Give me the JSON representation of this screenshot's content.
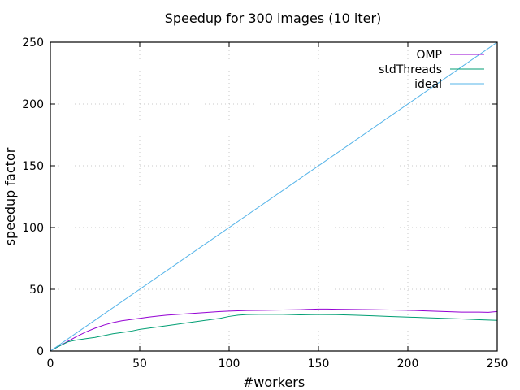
{
  "chart_data": {
    "type": "line",
    "title": "Speedup for 300 images (10 iter)",
    "xlabel": "#workers",
    "ylabel": "speedup factor",
    "xlim": [
      0,
      250
    ],
    "ylim": [
      0,
      250
    ],
    "xticks": [
      0,
      50,
      100,
      150,
      200,
      250
    ],
    "yticks": [
      0,
      50,
      100,
      150,
      200,
      250
    ],
    "grid": true,
    "legend_position": "top-right",
    "series": [
      {
        "name": "OMP",
        "color": "#9400d3",
        "points": [
          [
            1,
            1
          ],
          [
            5,
            4
          ],
          [
            10,
            8
          ],
          [
            15,
            12
          ],
          [
            20,
            15.5
          ],
          [
            25,
            18.5
          ],
          [
            30,
            21
          ],
          [
            35,
            23
          ],
          [
            40,
            24.5
          ],
          [
            45,
            25.5
          ],
          [
            50,
            26.5
          ],
          [
            55,
            27.5
          ],
          [
            60,
            28.3
          ],
          [
            65,
            29
          ],
          [
            70,
            29.5
          ],
          [
            75,
            30
          ],
          [
            80,
            30.5
          ],
          [
            85,
            31
          ],
          [
            90,
            31.5
          ],
          [
            95,
            32
          ],
          [
            100,
            32.3
          ],
          [
            110,
            32.8
          ],
          [
            120,
            33
          ],
          [
            130,
            33.2
          ],
          [
            140,
            33.5
          ],
          [
            150,
            34
          ],
          [
            155,
            34
          ],
          [
            160,
            33.8
          ],
          [
            170,
            33.6
          ],
          [
            180,
            33.5
          ],
          [
            190,
            33.2
          ],
          [
            200,
            33
          ],
          [
            210,
            32.5
          ],
          [
            220,
            32
          ],
          [
            230,
            31.5
          ],
          [
            240,
            31.5
          ],
          [
            245,
            31.3
          ],
          [
            250,
            32
          ]
        ]
      },
      {
        "name": "stdThreads",
        "color": "#009e73",
        "points": [
          [
            1,
            1
          ],
          [
            5,
            4
          ],
          [
            10,
            7.5
          ],
          [
            15,
            9
          ],
          [
            20,
            10
          ],
          [
            25,
            11
          ],
          [
            30,
            12.5
          ],
          [
            35,
            14
          ],
          [
            40,
            15
          ],
          [
            45,
            16
          ],
          [
            50,
            17.5
          ],
          [
            55,
            18.5
          ],
          [
            60,
            19.5
          ],
          [
            65,
            20.5
          ],
          [
            70,
            21.5
          ],
          [
            75,
            22.5
          ],
          [
            80,
            23.5
          ],
          [
            85,
            24.5
          ],
          [
            90,
            25.5
          ],
          [
            95,
            26.5
          ],
          [
            100,
            28
          ],
          [
            105,
            29
          ],
          [
            110,
            29.5
          ],
          [
            120,
            29.8
          ],
          [
            130,
            29.7
          ],
          [
            140,
            29.3
          ],
          [
            150,
            29.5
          ],
          [
            160,
            29.4
          ],
          [
            170,
            29
          ],
          [
            180,
            28.5
          ],
          [
            190,
            28
          ],
          [
            200,
            27.5
          ],
          [
            210,
            27
          ],
          [
            220,
            26.5
          ],
          [
            230,
            26
          ],
          [
            240,
            25.3
          ],
          [
            250,
            24.8
          ]
        ]
      },
      {
        "name": "ideal",
        "color": "#56b4e9",
        "points": [
          [
            0,
            0
          ],
          [
            250,
            250
          ]
        ]
      }
    ]
  }
}
